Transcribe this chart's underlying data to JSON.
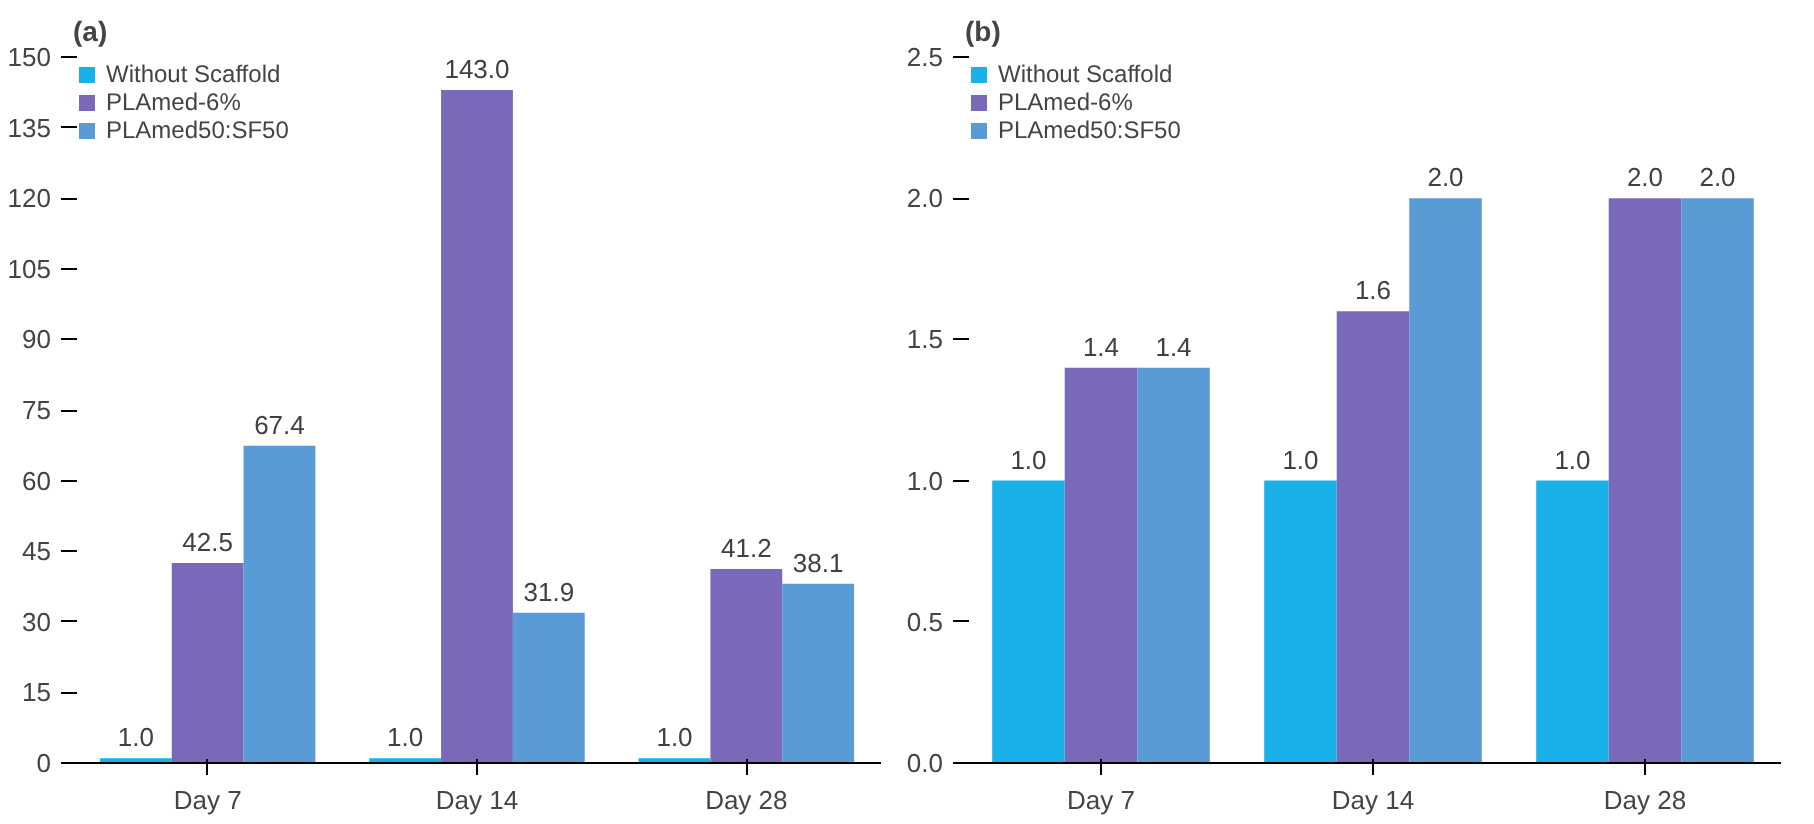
{
  "chart_data": [
    {
      "type": "bar",
      "title": "(a)",
      "categories": [
        "Day 7",
        "Day 14",
        "Day 28"
      ],
      "series": [
        {
          "name": "Without Scaffold",
          "color": "#1ab0e8",
          "values": [
            1.0,
            1.0,
            1.0
          ],
          "value_labels": [
            "1.0",
            "1.0",
            "1.0"
          ]
        },
        {
          "name": "PLAmed-6%",
          "color": "#7a68b8",
          "values": [
            42.5,
            143.0,
            41.2
          ],
          "value_labels": [
            "42.5",
            "143.0",
            "41.2"
          ]
        },
        {
          "name": "PLAmed50:SF50",
          "color": "#5b9bd5",
          "values": [
            67.4,
            31.9,
            38.1
          ],
          "value_labels": [
            "67.4",
            "31.9",
            "38.1"
          ]
        }
      ],
      "ylim": [
        0,
        150
      ],
      "yticks": [
        0,
        15,
        30,
        45,
        60,
        75,
        90,
        105,
        120,
        135,
        150
      ],
      "legend": "top left",
      "grid": false
    },
    {
      "type": "bar",
      "title": "(b)",
      "categories": [
        "Day 7",
        "Day 14",
        "Day 28"
      ],
      "series": [
        {
          "name": "Without Scaffold",
          "color": "#1ab0e8",
          "values": [
            1.0,
            1.0,
            1.0
          ],
          "value_labels": [
            "1.0",
            "1.0",
            "1.0"
          ]
        },
        {
          "name": "PLAmed-6%",
          "color": "#7a68b8",
          "values": [
            1.4,
            1.6,
            2.0
          ],
          "value_labels": [
            "1.4",
            "1.6",
            "2.0"
          ]
        },
        {
          "name": "PLAmed50:SF50",
          "color": "#5b9bd5",
          "values": [
            1.4,
            2.0,
            2.0
          ],
          "value_labels": [
            "1.4",
            "2.0",
            "2.0"
          ]
        }
      ],
      "ylim": [
        0,
        2.5
      ],
      "yticks": [
        {
          "value": 0,
          "label": "0.0"
        },
        {
          "value": 0.5,
          "label": "0.5"
        },
        {
          "value": 1,
          "label": "1.0"
        },
        {
          "value": 1.5,
          "label": "1.5"
        },
        {
          "value": 2,
          "label": "2.0"
        },
        {
          "value": 2.5,
          "label": "2.5"
        }
      ],
      "legend": "top left",
      "grid": false
    }
  ]
}
